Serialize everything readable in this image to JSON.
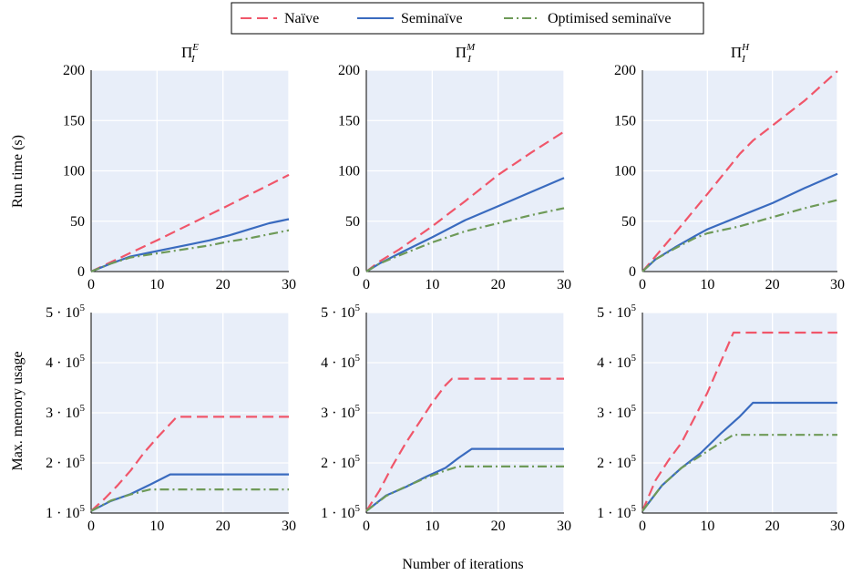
{
  "legend": [
    {
      "label": "Naïve",
      "color": "#f0566a",
      "dash": "12,6"
    },
    {
      "label": "Seminaïve",
      "color": "#3a6bbf",
      "dash": ""
    },
    {
      "label": "Optimised seminaïve",
      "color": "#6e9a58",
      "dash": "10,4,2,4"
    }
  ],
  "xlabel": "Number of iterations",
  "row_ylabels": [
    "Run time (s)",
    "Max. memory usage"
  ],
  "colors": {
    "plot_bg": "#e8eef9",
    "grid": "#ffffff",
    "naive": "#f0566a",
    "seminaive": "#3a6bbf",
    "optimised": "#6e9a58"
  },
  "chart_data": [
    {
      "type": "line",
      "title_base": "Π",
      "title_sub": "I",
      "title_sup": "E",
      "ylabel": "Run time (s)",
      "xlim": [
        0,
        30
      ],
      "ylim": [
        0,
        200
      ],
      "xticks": [
        0,
        10,
        20,
        30
      ],
      "yticks": [
        0,
        50,
        100,
        150,
        200
      ],
      "ytick_labels": [
        "0",
        "50",
        "100",
        "150",
        "200"
      ],
      "series": [
        {
          "name": "Naïve",
          "x": [
            0,
            10,
            20,
            30
          ],
          "y": [
            0,
            31,
            63,
            96
          ]
        },
        {
          "name": "Seminaïve",
          "x": [
            0,
            3,
            6,
            9,
            12,
            15,
            18,
            21,
            24,
            27,
            30
          ],
          "y": [
            0,
            8,
            15,
            19,
            23,
            27,
            31,
            36,
            42,
            48,
            52
          ]
        },
        {
          "name": "Optimised seminaïve",
          "x": [
            0,
            3,
            6,
            9,
            12,
            15,
            18,
            21,
            24,
            27,
            30
          ],
          "y": [
            0,
            8,
            14,
            17,
            20,
            23,
            26,
            30,
            33,
            37,
            41
          ]
        }
      ]
    },
    {
      "type": "line",
      "title_base": "Π",
      "title_sub": "I",
      "title_sup": "M",
      "ylabel": "",
      "xlim": [
        0,
        30
      ],
      "ylim": [
        0,
        200
      ],
      "xticks": [
        0,
        10,
        20,
        30
      ],
      "yticks": [
        0,
        50,
        100,
        150,
        200
      ],
      "ytick_labels": [
        "0",
        "50",
        "100",
        "150",
        "200"
      ],
      "series": [
        {
          "name": "Naïve",
          "x": [
            0,
            2,
            5,
            10,
            15,
            20,
            25,
            30
          ],
          "y": [
            0,
            10,
            22,
            45,
            70,
            96,
            118,
            139
          ]
        },
        {
          "name": "Seminaïve",
          "x": [
            0,
            2,
            5,
            10,
            15,
            20,
            25,
            30
          ],
          "y": [
            0,
            8,
            18,
            34,
            51,
            65,
            79,
            93
          ]
        },
        {
          "name": "Optimised seminaïve",
          "x": [
            0,
            2,
            5,
            10,
            15,
            20,
            25,
            30
          ],
          "y": [
            0,
            8,
            16,
            29,
            40,
            48,
            56,
            63
          ]
        }
      ]
    },
    {
      "type": "line",
      "title_base": "Π",
      "title_sub": "I",
      "title_sup": "H",
      "ylabel": "",
      "xlim": [
        0,
        30
      ],
      "ylim": [
        0,
        200
      ],
      "xticks": [
        0,
        10,
        20,
        30
      ],
      "yticks": [
        0,
        50,
        100,
        150,
        200
      ],
      "ytick_labels": [
        "0",
        "50",
        "100",
        "150",
        "200"
      ],
      "series": [
        {
          "name": "Naïve",
          "x": [
            0,
            2,
            5,
            10,
            15,
            17,
            20,
            25,
            30
          ],
          "y": [
            0,
            15,
            38,
            77,
            117,
            130,
            145,
            170,
            199
          ]
        },
        {
          "name": "Seminaïve",
          "x": [
            0,
            2,
            5,
            8,
            10,
            15,
            20,
            25,
            30
          ],
          "y": [
            0,
            12,
            24,
            35,
            42,
            55,
            68,
            83,
            97
          ]
        },
        {
          "name": "Optimised seminaïve",
          "x": [
            0,
            2,
            5,
            8,
            10,
            15,
            20,
            25,
            30
          ],
          "y": [
            0,
            12,
            23,
            33,
            38,
            45,
            54,
            63,
            71
          ]
        }
      ]
    },
    {
      "type": "line",
      "title_base": "",
      "title_sub": "",
      "title_sup": "",
      "ylabel": "Max. memory usage",
      "xlim": [
        0,
        30
      ],
      "ylim": [
        100000,
        500000
      ],
      "xticks": [
        0,
        10,
        20,
        30
      ],
      "yticks": [
        100000,
        200000,
        300000,
        400000,
        500000
      ],
      "ytick_labels": [
        "1 · 10^5",
        "2 · 10^5",
        "3 · 10^5",
        "4 · 10^5",
        "5 · 10^5"
      ],
      "series": [
        {
          "name": "Naïve",
          "x": [
            0,
            2,
            4,
            6,
            8,
            10,
            13,
            30
          ],
          "y": [
            104000,
            128000,
            155000,
            185000,
            220000,
            250000,
            292000,
            292000
          ]
        },
        {
          "name": "Seminaïve",
          "x": [
            0,
            3,
            6,
            9,
            12,
            30
          ],
          "y": [
            104000,
            124000,
            138000,
            157000,
            177000,
            177000
          ]
        },
        {
          "name": "Optimised seminaïve",
          "x": [
            0,
            3,
            6,
            8,
            9,
            30
          ],
          "y": [
            104000,
            125000,
            137000,
            144000,
            147000,
            147000
          ]
        }
      ]
    },
    {
      "type": "line",
      "title_base": "",
      "title_sub": "",
      "title_sup": "",
      "ylabel": "",
      "xlim": [
        0,
        30
      ],
      "ylim": [
        100000,
        500000
      ],
      "xticks": [
        0,
        10,
        20,
        30
      ],
      "yticks": [
        100000,
        200000,
        300000,
        400000,
        500000
      ],
      "ytick_labels": [
        "1 · 10^5",
        "2 · 10^5",
        "3 · 10^5",
        "4 · 10^5",
        "5 · 10^5"
      ],
      "series": [
        {
          "name": "Naïve",
          "x": [
            0,
            2,
            4,
            6,
            8,
            10,
            12,
            13,
            30
          ],
          "y": [
            104000,
            145000,
            195000,
            240000,
            280000,
            320000,
            355000,
            368000,
            368000
          ]
        },
        {
          "name": "Seminaïve",
          "x": [
            0,
            3,
            6,
            9,
            12,
            14,
            16,
            30
          ],
          "y": [
            104000,
            135000,
            152000,
            172000,
            190000,
            210000,
            228000,
            228000
          ]
        },
        {
          "name": "Optimised seminaïve",
          "x": [
            0,
            3,
            6,
            9,
            12,
            14,
            30
          ],
          "y": [
            104000,
            134000,
            153000,
            170000,
            185000,
            193000,
            193000
          ]
        }
      ]
    },
    {
      "type": "line",
      "title_base": "",
      "title_sub": "",
      "title_sup": "",
      "ylabel": "",
      "xlim": [
        0,
        30
      ],
      "ylim": [
        100000,
        500000
      ],
      "xticks": [
        0,
        10,
        20,
        30
      ],
      "yticks": [
        100000,
        200000,
        300000,
        400000,
        500000
      ],
      "ytick_labels": [
        "1 · 10^5",
        "2 · 10^5",
        "3 · 10^5",
        "4 · 10^5",
        "5 · 10^5"
      ],
      "series": [
        {
          "name": "Naïve",
          "x": [
            0,
            2,
            4,
            6,
            8,
            10,
            12,
            14,
            30
          ],
          "y": [
            104000,
            165000,
            205000,
            240000,
            290000,
            340000,
            400000,
            460000,
            460000
          ]
        },
        {
          "name": "Seminaïve",
          "x": [
            0,
            3,
            6,
            9,
            12,
            15,
            17,
            30
          ],
          "y": [
            104000,
            155000,
            190000,
            220000,
            258000,
            293000,
            320000,
            320000
          ]
        },
        {
          "name": "Optimised seminaïve",
          "x": [
            0,
            3,
            6,
            9,
            12,
            14,
            30
          ],
          "y": [
            104000,
            155000,
            190000,
            215000,
            240000,
            256000,
            256000
          ]
        }
      ]
    }
  ]
}
